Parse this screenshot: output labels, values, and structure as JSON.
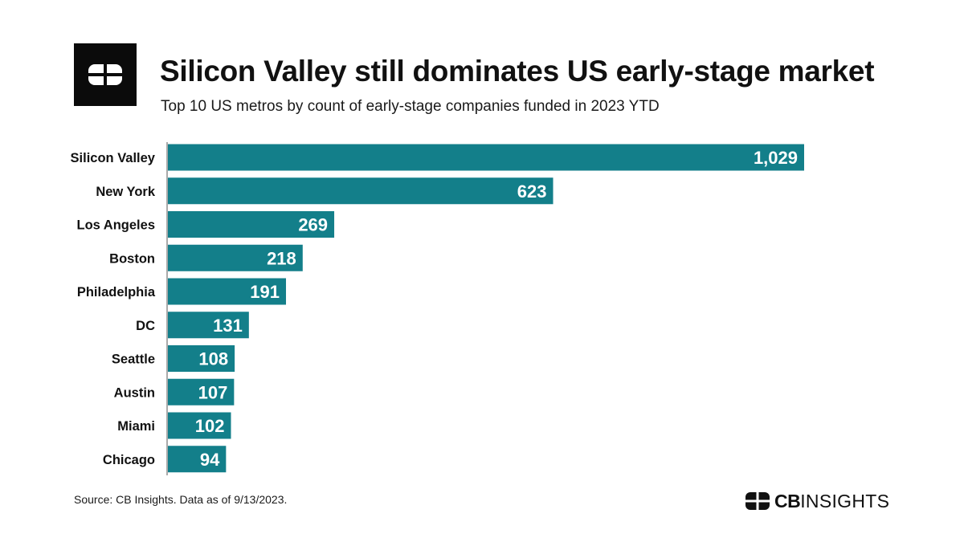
{
  "header": {
    "logo": "cb-insights-logo-icon",
    "title": "Silicon Valley still dominates US early-stage market",
    "subtitle": "Top 10 US metros by count of early-stage companies funded in 2023 YTD"
  },
  "footer": {
    "source": "Source: CB Insights. Data as of 9/13/2023.",
    "brand_bold": "CB",
    "brand_light": "INSIGHTS"
  },
  "colors": {
    "bar": "#137f8a",
    "bar_label": "#ffffff",
    "axis": "#555555",
    "text": "#111111"
  },
  "chart_data": {
    "type": "bar",
    "orientation": "horizontal",
    "title": "Silicon Valley still dominates US early-stage market",
    "subtitle": "Top 10 US metros by count of early-stage companies funded in 2023 YTD",
    "categories": [
      "Silicon Valley",
      "New York",
      "Los Angeles",
      "Boston",
      "Philadelphia",
      "DC",
      "Seattle",
      "Austin",
      "Miami",
      "Chicago"
    ],
    "values": [
      1029,
      623,
      269,
      218,
      191,
      131,
      108,
      107,
      102,
      94
    ],
    "value_labels": [
      "1,029",
      "623",
      "269",
      "218",
      "191",
      "131",
      "108",
      "107",
      "102",
      "94"
    ],
    "xlim": [
      0,
      1029
    ],
    "grid": false,
    "legend": "none"
  }
}
